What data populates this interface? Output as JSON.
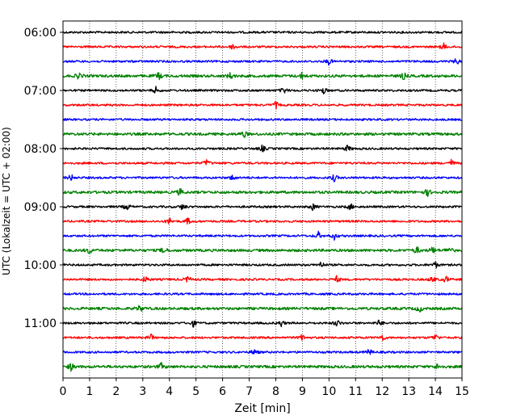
{
  "chart_data": {
    "type": "line",
    "title": "",
    "xlabel": "Zeit  [min]",
    "ylabel": "UTC (Lokalzeit = UTC + 02:00)",
    "xlim": [
      0,
      15
    ],
    "x_ticks": [
      0,
      1,
      2,
      3,
      4,
      5,
      6,
      7,
      8,
      9,
      10,
      11,
      12,
      13,
      14,
      15
    ],
    "x_tick_labels": [
      "0",
      "1",
      "2",
      "3",
      "4",
      "5",
      "6",
      "7",
      "8",
      "9",
      "10",
      "11",
      "12",
      "13",
      "14",
      "15"
    ],
    "y_tick_labels": [
      "06:00",
      "07:00",
      "08:00",
      "09:00",
      "10:00",
      "11:00"
    ],
    "trace_interval_minutes": 15,
    "x_grid": true,
    "grid_style": "dotted",
    "color_cycle": [
      "#000000",
      "#ff0000",
      "#0000ff",
      "#008000"
    ],
    "series": [
      {
        "start": "06:00",
        "color": "#000000",
        "events": []
      },
      {
        "start": "06:15",
        "color": "#ff0000",
        "events": [
          6.4,
          14.3
        ]
      },
      {
        "start": "06:30",
        "color": "#0000ff",
        "events": [
          10.0,
          14.8
        ]
      },
      {
        "start": "06:45",
        "color": "#008000",
        "events": [
          0.6,
          3.6,
          6.3,
          9.0,
          12.8
        ]
      },
      {
        "start": "07:00",
        "color": "#000000",
        "events": [
          3.5,
          8.3,
          9.8
        ]
      },
      {
        "start": "07:15",
        "color": "#ff0000",
        "events": [
          8.0
        ]
      },
      {
        "start": "07:30",
        "color": "#0000ff",
        "events": []
      },
      {
        "start": "07:45",
        "color": "#008000",
        "events": [
          6.8
        ]
      },
      {
        "start": "08:00",
        "color": "#000000",
        "events": [
          7.5,
          10.7
        ]
      },
      {
        "start": "08:15",
        "color": "#ff0000",
        "events": [
          5.4,
          14.6
        ]
      },
      {
        "start": "08:30",
        "color": "#0000ff",
        "events": [
          0.3,
          6.4,
          10.2
        ]
      },
      {
        "start": "08:45",
        "color": "#008000",
        "events": [
          4.4,
          13.7
        ]
      },
      {
        "start": "09:00",
        "color": "#000000",
        "events": [
          2.4,
          4.5,
          9.4,
          10.8
        ]
      },
      {
        "start": "09:15",
        "color": "#ff0000",
        "events": [
          4.0,
          4.7
        ]
      },
      {
        "start": "09:30",
        "color": "#0000ff",
        "events": [
          9.6,
          10.2
        ]
      },
      {
        "start": "09:45",
        "color": "#008000",
        "events": [
          1.0,
          3.8,
          13.3,
          13.9,
          14.5
        ]
      },
      {
        "start": "10:00",
        "color": "#000000",
        "events": [
          9.7,
          14.0
        ]
      },
      {
        "start": "10:15",
        "color": "#ff0000",
        "events": [
          3.1,
          4.7,
          10.3,
          13.9,
          14.4
        ]
      },
      {
        "start": "10:30",
        "color": "#0000ff",
        "events": []
      },
      {
        "start": "10:45",
        "color": "#008000",
        "events": [
          2.9,
          13.4
        ]
      },
      {
        "start": "11:00",
        "color": "#000000",
        "events": [
          4.9,
          8.2,
          10.3,
          11.9
        ]
      },
      {
        "start": "11:15",
        "color": "#ff0000",
        "events": [
          3.3,
          9.0,
          12.0,
          14.0
        ]
      },
      {
        "start": "11:30",
        "color": "#0000ff",
        "events": [
          7.2,
          11.5
        ]
      },
      {
        "start": "11:45",
        "color": "#008000",
        "events": [
          0.3,
          3.7,
          14.1
        ]
      }
    ]
  }
}
